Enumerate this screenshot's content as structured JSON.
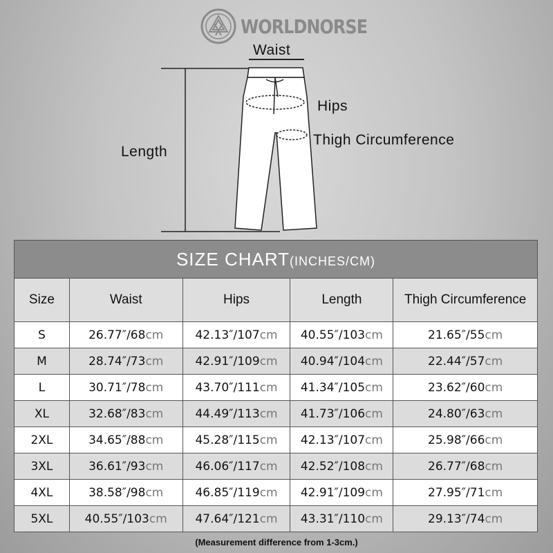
{
  "brand": {
    "name": "WORLDNORSE"
  },
  "diagram": {
    "labels": {
      "waist": "Waist",
      "hips": "Hips",
      "thigh": "Thigh Circumference",
      "length": "Length"
    }
  },
  "table": {
    "title": "SIZE CHART",
    "title_units": "(INCHES/CM)",
    "columns": [
      "Size",
      "Waist",
      "Hips",
      "Length",
      "Thigh Circumference"
    ],
    "unit_suffix": "cm",
    "rows": [
      [
        "S",
        "26.77″/68",
        "42.13″/107",
        "40.55″/103",
        "21.65″/55"
      ],
      [
        "M",
        "28.74″/73",
        "42.91″/109",
        "40.94″/104",
        "22.44″/57"
      ],
      [
        "L",
        "30.71″/78",
        "43.70″/111",
        "41.34″/105",
        "23.62″/60"
      ],
      [
        "XL",
        "32.68″/83",
        "44.49″/113",
        "41.73″/106",
        "24.80″/63"
      ],
      [
        "2XL",
        "34.65″/88",
        "45.28″/115",
        "42.13″/107",
        "25.98″/66"
      ],
      [
        "3XL",
        "36.61″/93",
        "46.06″/117",
        "42.52″/108",
        "26.77″/68"
      ],
      [
        "4XL",
        "38.58″/98",
        "46.85″/119",
        "42.91″/109",
        "27.95″/71"
      ],
      [
        "5XL",
        "40.55″/103",
        "47.64″/121",
        "43.31″/110",
        "29.13″/74"
      ]
    ]
  },
  "note": "(Measurement difference from 1-3cm.)",
  "colors": {
    "title_bg": "#8c8c8c",
    "header_bg": "#dedede",
    "alt_row": "#dcdcdc",
    "cm_text": "#777777"
  }
}
